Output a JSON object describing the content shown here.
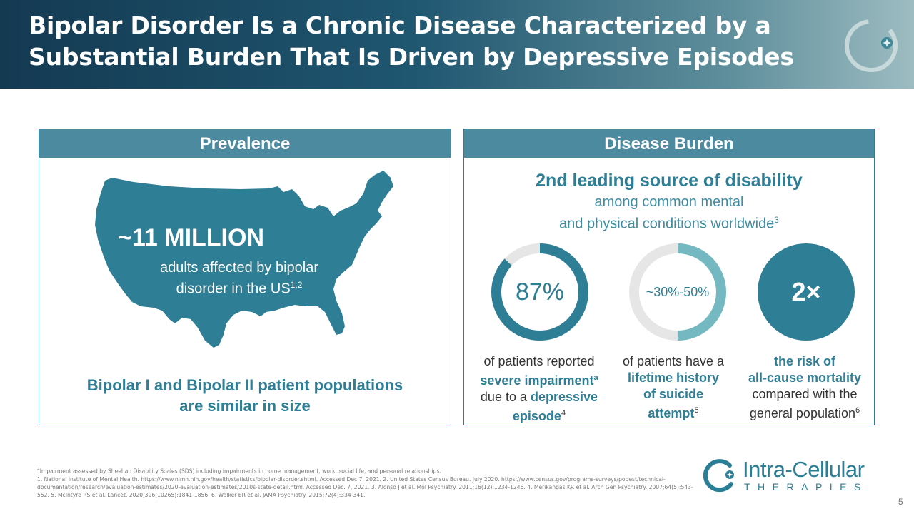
{
  "header": {
    "title_line1": "Bipolar Disorder Is a Chronic Disease Characterized by a",
    "title_line2": "Substantial Burden That Is Driven by Depressive Episodes"
  },
  "prevalence": {
    "heading": "Prevalence",
    "headline": "~11 MILLION",
    "caption": "adults affected by bipolar disorder in the US",
    "caption_ref": "1,2",
    "populations_line1": "Bipolar I and Bipolar II patient populations",
    "populations_line2": "are similar in size"
  },
  "burden": {
    "heading": "Disease Burden",
    "title": "2nd leading source of disability",
    "sub_line1": "among common mental",
    "sub_line2": "and physical conditions worldwide",
    "sub_ref": "3",
    "stats": [
      {
        "value": "87%",
        "fraction": 0.87,
        "desc_pre": "of patients reported",
        "desc_hl1": "severe impairment",
        "desc_sup1": "a",
        "desc_mid": "due to a",
        "desc_hl2": "depressive",
        "desc_hl3": "episode",
        "desc_ref": "4"
      },
      {
        "value": "~30%-50%",
        "fraction_low": 0.3,
        "fraction_high": 0.5,
        "desc_pre": "of patients have a",
        "desc_hl1": "lifetime history",
        "desc_hl2": "of suicide",
        "desc_hl3": "attempt",
        "desc_ref": "5"
      },
      {
        "value": "2×",
        "desc_hl1": "the risk of",
        "desc_hl2": "all-cause mortality",
        "desc_mid": "compared with the",
        "desc_post": "general population",
        "desc_ref": "6"
      }
    ]
  },
  "footnotes": {
    "note_a_marker": "a",
    "note_a": "Impairment assessed by Sheehan Disability Scales (SDS) including impairments in home management, work, social life, and personal relationships.",
    "refs": "1. National Institute of Mental Health. https://www.nimh.nih.gov/health/statistics/bipolar-disorder.shtml. Accessed Dec 7, 2021. 2. United States Census Bureau. July 2020. https://www.census.gov/programs-surveys/popest/technical-documentation/research/evaluation-estimates/2020-evaluation-estimates/2010s-state-detail.html. Accessed Dec. 7, 2021. 3. Alonso J et al. Mol Psychiatry. 2011;16(12):1234-1246. 4. Merikangas KR et al. Arch Gen Psychiatry. 2007;64(5):543-552. 5. McIntyre RS et al. Lancet. 2020;396(10265):1841-1856. 6. Walker ER et al. JAMA Psychiatry. 2015;72(4):334-341."
  },
  "brand": {
    "name": "Intra-Cellular",
    "sub": "THERAPIES"
  },
  "page_number": "5",
  "colors": {
    "teal": "#2e7e95",
    "ring_track": "#e6e6e6",
    "light_teal": "#74b9c1",
    "header_dark": "#143a52"
  },
  "icons": [
    "us-map-icon",
    "company-ring-logo-icon",
    "brand-mark-icon"
  ]
}
